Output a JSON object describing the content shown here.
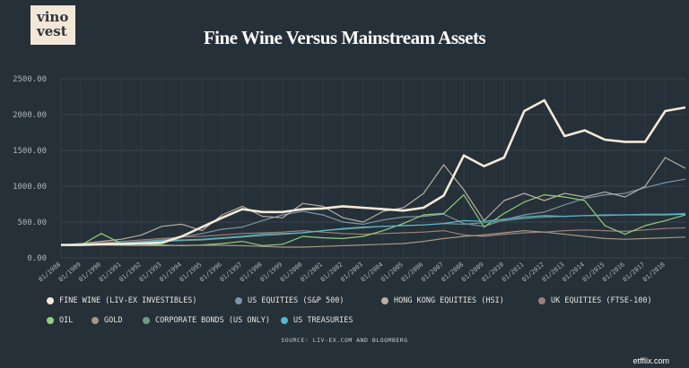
{
  "logo_text": [
    "vino",
    "vest"
  ],
  "title": "Fine Wine Versus Mainstream Assets",
  "source": "SOURCE: LIV-EX.COM AND BLOOMBERG",
  "watermark": "etfflix.com",
  "chart_data": {
    "type": "line",
    "title": "Fine Wine Versus Mainstream Assets",
    "xlabel": "",
    "ylabel": "",
    "ylim": [
      0,
      2500
    ],
    "grid": true,
    "legend_placement": "bottom",
    "yticks": [
      "2500.00",
      "2000.00",
      "1500.00",
      "1000.00",
      "500.00",
      "0.00"
    ],
    "x_ticks": [
      "01/1988",
      "01/1989",
      "01/1990",
      "01/1991",
      "01/1992",
      "01/1993",
      "01/1994",
      "01/1995",
      "01/1996",
      "01/1997",
      "01/1998",
      "01/1999",
      "01/2000",
      "01/2001",
      "01/2002",
      "01/2003",
      "01/2004",
      "01/2005",
      "01/2006",
      "01/2007",
      "01/2008",
      "01/2009",
      "01/2010",
      "01/2011",
      "01/2012",
      "01/2013",
      "01/2014",
      "01/2015",
      "01/2016",
      "01/2017",
      "01/2018"
    ],
    "x": [
      1988,
      1989,
      1990,
      1991,
      1992,
      1993,
      1994,
      1995,
      1996,
      1997,
      1998,
      1999,
      2000,
      2001,
      2002,
      2003,
      2004,
      2005,
      2006,
      2007,
      2008,
      2009,
      2010,
      2011,
      2012,
      2013,
      2014,
      2015,
      2016,
      2017,
      2018,
      2019
    ],
    "series": [
      {
        "name": "FINE WINE (LIV-EX INVESTIBLES)",
        "color": "#f4ead8",
        "values": [
          180,
          180,
          190,
          195,
          200,
          210,
          300,
          430,
          560,
          680,
          640,
          640,
          680,
          690,
          720,
          700,
          680,
          660,
          700,
          870,
          1430,
          1280,
          1400,
          2050,
          2200,
          1700,
          1780,
          1650,
          1620,
          1620,
          2050,
          2100
        ]
      },
      {
        "name": "US EQUITIES (S&P 500)",
        "color": "#7e93a6",
        "values": [
          180,
          185,
          200,
          210,
          230,
          250,
          290,
          340,
          400,
          430,
          520,
          600,
          650,
          600,
          500,
          470,
          530,
          570,
          580,
          610,
          480,
          440,
          530,
          600,
          640,
          740,
          830,
          880,
          900,
          980,
          1050,
          1100
        ]
      },
      {
        "name": "HONG KONG EQUITIES (HSI)",
        "color": "#b8aea2",
        "values": [
          180,
          200,
          230,
          260,
          320,
          440,
          470,
          380,
          600,
          720,
          580,
          560,
          760,
          720,
          560,
          500,
          650,
          700,
          900,
          1300,
          950,
          520,
          800,
          900,
          800,
          900,
          850,
          920,
          850,
          1000,
          1400,
          1250
        ]
      },
      {
        "name": "UK EQUITIES (FTSE-100)",
        "color": "#9c7f7c",
        "values": [
          180,
          190,
          210,
          230,
          250,
          270,
          290,
          300,
          320,
          340,
          350,
          360,
          380,
          360,
          340,
          330,
          340,
          350,
          360,
          380,
          320,
          300,
          330,
          350,
          360,
          380,
          390,
          380,
          370,
          390,
          410,
          420
        ]
      },
      {
        "name": "OIL",
        "color": "#8fd07a",
        "values": [
          180,
          180,
          340,
          200,
          190,
          180,
          170,
          180,
          200,
          230,
          170,
          190,
          300,
          280,
          270,
          300,
          380,
          480,
          600,
          620,
          880,
          430,
          620,
          780,
          880,
          850,
          800,
          450,
          330,
          450,
          520,
          600
        ]
      },
      {
        "name": "GOLD",
        "color": "#a6987e",
        "values": [
          180,
          185,
          180,
          175,
          170,
          170,
          175,
          175,
          175,
          170,
          160,
          150,
          150,
          160,
          170,
          180,
          190,
          200,
          230,
          270,
          300,
          320,
          350,
          380,
          360,
          330,
          300,
          270,
          260,
          270,
          280,
          290
        ]
      },
      {
        "name": "CORPORATE BONDS (US ONLY)",
        "color": "#6b9a86",
        "values": [
          180,
          190,
          200,
          210,
          220,
          230,
          240,
          250,
          270,
          290,
          310,
          330,
          350,
          380,
          400,
          420,
          440,
          450,
          460,
          480,
          470,
          490,
          520,
          550,
          570,
          580,
          590,
          590,
          600,
          610,
          610,
          620
        ]
      },
      {
        "name": "US TREASURIES",
        "color": "#58b6cf",
        "values": [
          180,
          190,
          200,
          210,
          220,
          240,
          250,
          260,
          280,
          300,
          330,
          340,
          350,
          380,
          410,
          430,
          440,
          450,
          460,
          480,
          520,
          510,
          540,
          570,
          590,
          580,
          590,
          600,
          600,
          600,
          600,
          610
        ]
      }
    ]
  }
}
